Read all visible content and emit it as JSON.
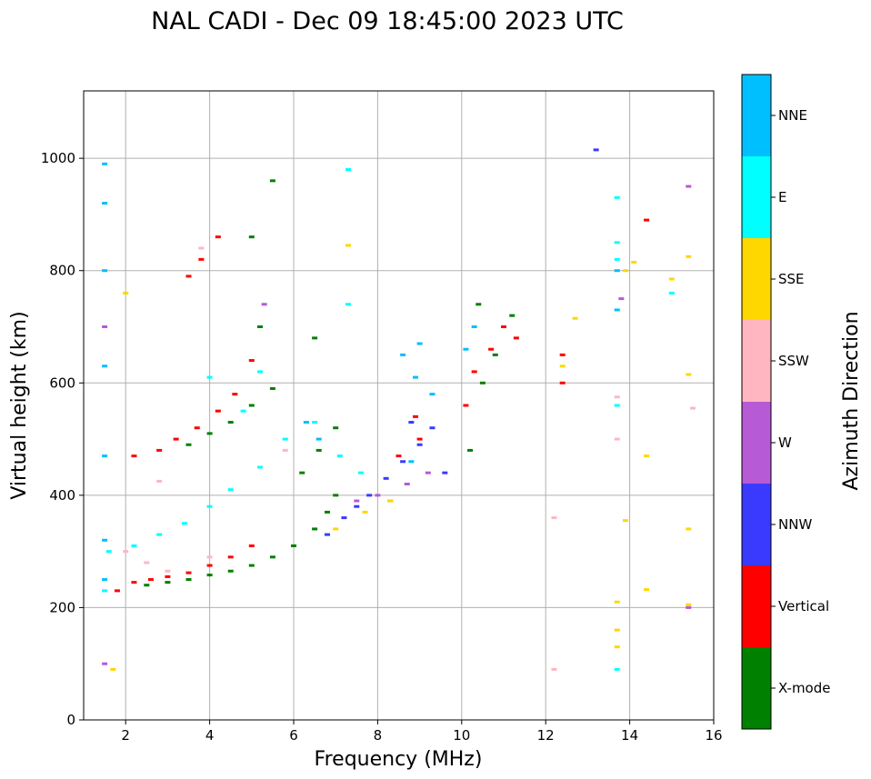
{
  "chart_data": {
    "type": "scatter",
    "title": "NAL CADI - Dec 09 18:45:00 2023 UTC",
    "xlabel": "Frequency (MHz)",
    "ylabel": "Virtual height (km)",
    "xlim": [
      1,
      16
    ],
    "ylim": [
      0,
      1120
    ],
    "xticks": [
      2,
      4,
      6,
      8,
      10,
      12,
      14,
      16
    ],
    "yticks": [
      0,
      200,
      400,
      600,
      800,
      1000
    ],
    "grid": true,
    "colorbar": {
      "label": "Azimuth Direction",
      "categories": [
        {
          "name": "X-mode",
          "color": "#008000"
        },
        {
          "name": "Vertical",
          "color": "#ff0000"
        },
        {
          "name": "NNW",
          "color": "#3a3aff"
        },
        {
          "name": "W",
          "color": "#b65ad6"
        },
        {
          "name": "SSW",
          "color": "#ffb6c1"
        },
        {
          "name": "SSE",
          "color": "#ffd700"
        },
        {
          "name": "E",
          "color": "#00ffff"
        },
        {
          "name": "NNE",
          "color": "#00bfff"
        }
      ]
    },
    "series": [
      {
        "name": "X-mode",
        "points": [
          [
            2.5,
            240
          ],
          [
            3.0,
            245
          ],
          [
            3.5,
            250
          ],
          [
            4.0,
            258
          ],
          [
            4.5,
            265
          ],
          [
            5.0,
            275
          ],
          [
            5.5,
            290
          ],
          [
            6.0,
            310
          ],
          [
            6.5,
            340
          ],
          [
            6.8,
            370
          ],
          [
            7.0,
            400
          ],
          [
            6.2,
            440
          ],
          [
            6.6,
            480
          ],
          [
            7.0,
            520
          ],
          [
            3.5,
            490
          ],
          [
            4.0,
            510
          ],
          [
            4.5,
            530
          ],
          [
            5.0,
            560
          ],
          [
            5.5,
            590
          ],
          [
            5.2,
            700
          ],
          [
            5.0,
            860
          ],
          [
            5.5,
            960
          ],
          [
            10.2,
            480
          ],
          [
            10.5,
            600
          ],
          [
            10.8,
            650
          ],
          [
            11.0,
            700
          ],
          [
            11.2,
            720
          ],
          [
            6.5,
            680
          ],
          [
            10.4,
            740
          ]
        ]
      },
      {
        "name": "Vertical",
        "points": [
          [
            1.8,
            230
          ],
          [
            2.2,
            245
          ],
          [
            2.6,
            250
          ],
          [
            3.0,
            255
          ],
          [
            3.5,
            262
          ],
          [
            4.0,
            275
          ],
          [
            4.5,
            290
          ],
          [
            5.0,
            310
          ],
          [
            2.2,
            470
          ],
          [
            2.8,
            480
          ],
          [
            3.2,
            500
          ],
          [
            3.7,
            520
          ],
          [
            4.2,
            550
          ],
          [
            4.6,
            580
          ],
          [
            5.0,
            640
          ],
          [
            3.8,
            820
          ],
          [
            3.5,
            790
          ],
          [
            4.2,
            860
          ],
          [
            8.5,
            470
          ],
          [
            9.0,
            500
          ],
          [
            10.1,
            560
          ],
          [
            10.3,
            620
          ],
          [
            10.7,
            660
          ],
          [
            11.0,
            700
          ],
          [
            11.3,
            680
          ],
          [
            12.4,
            600
          ],
          [
            12.4,
            650
          ],
          [
            14.4,
            890
          ],
          [
            8.9,
            540
          ]
        ]
      },
      {
        "name": "NNW",
        "points": [
          [
            6.8,
            330
          ],
          [
            7.2,
            360
          ],
          [
            7.8,
            400
          ],
          [
            8.2,
            430
          ],
          [
            8.6,
            460
          ],
          [
            9.0,
            490
          ],
          [
            9.3,
            520
          ],
          [
            9.6,
            440
          ],
          [
            13.2,
            1015
          ],
          [
            8.8,
            530
          ],
          [
            7.5,
            380
          ]
        ]
      },
      {
        "name": "W",
        "points": [
          [
            7.5,
            390
          ],
          [
            8.0,
            400
          ],
          [
            8.7,
            420
          ],
          [
            9.2,
            440
          ],
          [
            8.3,
            390
          ],
          [
            15.4,
            950
          ],
          [
            15.4,
            200
          ],
          [
            13.8,
            750
          ],
          [
            1.5,
            700
          ],
          [
            1.5,
            100
          ],
          [
            5.3,
            740
          ]
        ]
      },
      {
        "name": "SSW",
        "points": [
          [
            2.0,
            300
          ],
          [
            2.5,
            280
          ],
          [
            3.0,
            265
          ],
          [
            4.0,
            290
          ],
          [
            5.8,
            480
          ],
          [
            12.2,
            360
          ],
          [
            12.2,
            90
          ],
          [
            13.7,
            575
          ],
          [
            13.7,
            500
          ],
          [
            15.5,
            555
          ],
          [
            3.8,
            840
          ],
          [
            2.8,
            425
          ]
        ]
      },
      {
        "name": "SSE",
        "points": [
          [
            7.0,
            340
          ],
          [
            7.7,
            370
          ],
          [
            8.3,
            390
          ],
          [
            12.4,
            630
          ],
          [
            12.7,
            715
          ],
          [
            13.9,
            800
          ],
          [
            14.1,
            815
          ],
          [
            15.0,
            785
          ],
          [
            15.4,
            825
          ],
          [
            15.4,
            615
          ],
          [
            15.4,
            340
          ],
          [
            15.4,
            205
          ],
          [
            13.7,
            210
          ],
          [
            13.7,
            160
          ],
          [
            13.7,
            130
          ],
          [
            14.4,
            470
          ],
          [
            14.4,
            232
          ],
          [
            13.9,
            355
          ],
          [
            1.7,
            90
          ],
          [
            7.3,
            845
          ],
          [
            2.0,
            760
          ]
        ]
      },
      {
        "name": "E",
        "points": [
          [
            1.6,
            300
          ],
          [
            2.2,
            310
          ],
          [
            2.8,
            330
          ],
          [
            3.4,
            350
          ],
          [
            4.0,
            380
          ],
          [
            4.5,
            410
          ],
          [
            5.2,
            450
          ],
          [
            5.8,
            500
          ],
          [
            6.5,
            530
          ],
          [
            7.1,
            470
          ],
          [
            7.6,
            440
          ],
          [
            4.8,
            550
          ],
          [
            5.2,
            620
          ],
          [
            7.3,
            980
          ],
          [
            7.3,
            740
          ],
          [
            13.7,
            930
          ],
          [
            13.7,
            850
          ],
          [
            13.7,
            820
          ],
          [
            15.0,
            760
          ],
          [
            13.7,
            560
          ],
          [
            13.7,
            90
          ],
          [
            4.0,
            610
          ],
          [
            1.5,
            230
          ]
        ]
      },
      {
        "name": "NNE",
        "points": [
          [
            1.5,
            250
          ],
          [
            1.5,
            320
          ],
          [
            1.5,
            470
          ],
          [
            1.5,
            630
          ],
          [
            1.5,
            800
          ],
          [
            1.5,
            920
          ],
          [
            1.5,
            990
          ],
          [
            6.3,
            530
          ],
          [
            6.6,
            500
          ],
          [
            8.6,
            650
          ],
          [
            8.9,
            610
          ],
          [
            9.0,
            670
          ],
          [
            9.3,
            580
          ],
          [
            10.1,
            660
          ],
          [
            10.3,
            700
          ],
          [
            13.7,
            730
          ],
          [
            13.7,
            800
          ],
          [
            8.8,
            460
          ]
        ]
      }
    ]
  }
}
